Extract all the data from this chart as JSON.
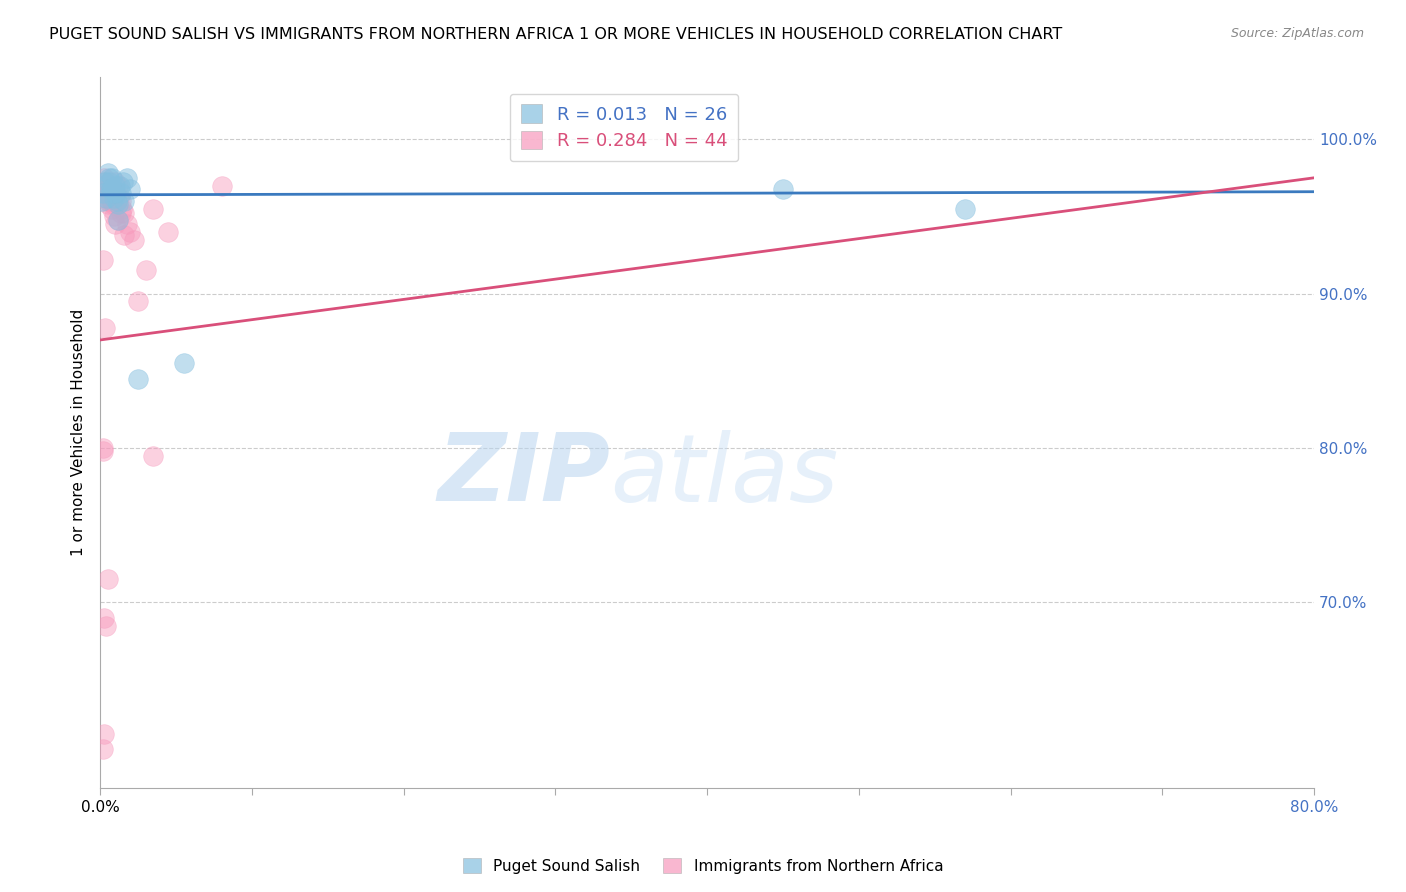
{
  "title": "PUGET SOUND SALISH VS IMMIGRANTS FROM NORTHERN AFRICA 1 OR MORE VEHICLES IN HOUSEHOLD CORRELATION CHART",
  "source": "Source: ZipAtlas.com",
  "ylabel": "1 or more Vehicles in Household",
  "x_range": [
    0.0,
    80.0
  ],
  "y_range": [
    58.0,
    104.0
  ],
  "blue_color": "#85bfdf",
  "pink_color": "#f799bc",
  "blue_line_color": "#3a7abf",
  "pink_line_color": "#d94f7a",
  "watermark_zip": "ZIP",
  "watermark_atlas": "atlas",
  "blue_r": "0.013",
  "blue_n": "26",
  "pink_r": "0.284",
  "pink_n": "44",
  "blue_scatter_x": [
    0.3,
    0.5,
    0.6,
    0.7,
    0.8,
    0.9,
    1.0,
    1.1,
    1.2,
    1.3,
    1.4,
    1.5,
    1.6,
    1.8,
    2.0,
    2.5,
    0.4,
    0.6,
    0.8,
    1.0,
    1.2,
    45.0,
    57.0,
    0.2,
    5.5,
    0.15
  ],
  "blue_scatter_y": [
    97.2,
    97.8,
    97.5,
    96.8,
    97.5,
    96.2,
    97.0,
    96.0,
    95.8,
    97.0,
    96.5,
    97.2,
    96.0,
    97.5,
    96.8,
    84.5,
    96.2,
    97.2,
    96.8,
    96.5,
    94.8,
    96.8,
    95.5,
    96.5,
    85.5,
    96.0
  ],
  "pink_scatter_x": [
    0.15,
    0.25,
    0.35,
    0.45,
    0.55,
    0.65,
    0.75,
    0.85,
    0.95,
    1.05,
    1.15,
    1.25,
    1.35,
    1.45,
    1.6,
    1.8,
    2.0,
    2.2,
    2.5,
    3.0,
    3.5,
    0.3,
    0.5,
    0.5,
    0.6,
    0.7,
    0.8,
    0.9,
    1.0,
    1.2,
    1.4,
    1.6,
    0.2,
    0.3,
    3.5,
    4.5,
    0.18,
    0.22,
    0.28,
    0.4,
    0.5,
    8.0,
    0.2,
    0.25
  ],
  "pink_scatter_y": [
    97.0,
    97.5,
    97.2,
    96.8,
    96.5,
    96.2,
    96.0,
    95.8,
    97.2,
    96.5,
    97.0,
    96.2,
    96.0,
    95.5,
    95.2,
    94.5,
    94.0,
    93.5,
    89.5,
    91.5,
    95.5,
    96.2,
    96.0,
    95.8,
    96.5,
    96.0,
    95.5,
    95.0,
    94.5,
    94.8,
    95.2,
    93.8,
    92.2,
    87.8,
    79.5,
    94.0,
    80.0,
    79.8,
    69.0,
    68.5,
    71.5,
    97.0,
    60.5,
    61.5
  ],
  "blue_trend_x": [
    0.0,
    80.0
  ],
  "blue_trend_y": [
    96.4,
    96.6
  ],
  "pink_trend_x0": 0.0,
  "pink_trend_x1": 80.0,
  "pink_trend_y0": 87.0,
  "pink_trend_y1": 97.5,
  "ytick_vals": [
    70.0,
    80.0,
    90.0,
    100.0
  ],
  "xtick_vals": [
    0,
    10,
    20,
    30,
    40,
    50,
    60,
    70,
    80
  ],
  "grid_color": "#cccccc",
  "spine_color": "#aaaaaa",
  "axis_label_color": "#4472c4",
  "title_fontsize": 11.5,
  "source_fontsize": 9,
  "tick_fontsize": 11
}
